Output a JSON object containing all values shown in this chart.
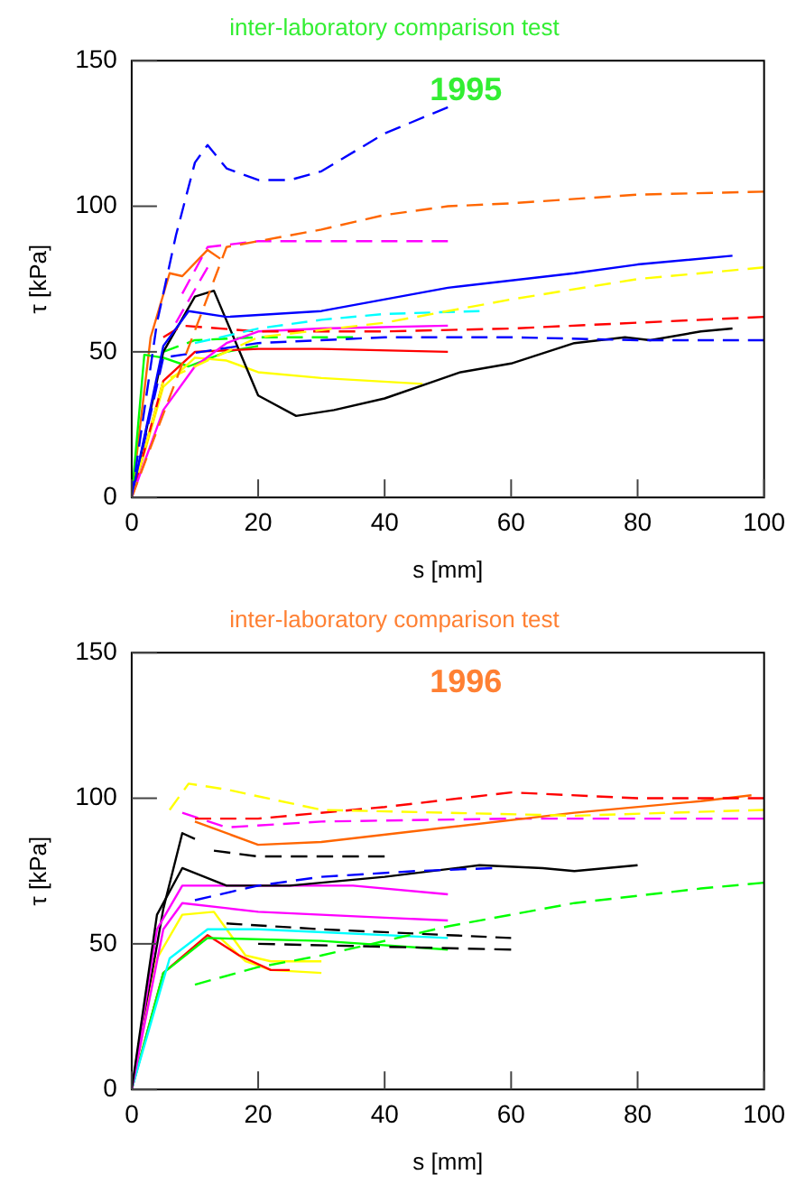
{
  "chart_data": [
    {
      "type": "line",
      "title": "inter-laboratory comparison test",
      "annotations": [
        "1995"
      ],
      "xlabel": "s [mm]",
      "ylabel": "τ [kPa]",
      "xlim": [
        0,
        100
      ],
      "xticks": [
        0,
        20,
        40,
        60,
        80,
        100
      ],
      "ylim": [
        0,
        150
      ],
      "yticks": [
        0,
        50,
        100,
        150
      ],
      "grid": false,
      "legend": false,
      "marker": "none",
      "series": [
        {
          "color": "#0000ff",
          "line_style": "dashed",
          "x": [
            0,
            4,
            7,
            10,
            12,
            15,
            20,
            25,
            30,
            40,
            50
          ],
          "values": [
            0,
            60,
            90,
            115,
            121,
            113,
            109,
            109,
            112,
            125,
            134
          ]
        },
        {
          "color": "#ff6600",
          "line_style": "dashed",
          "x": [
            0,
            15,
            30,
            40,
            50,
            60,
            80,
            100
          ],
          "values": [
            0,
            86,
            92,
            97,
            100,
            101,
            104,
            105
          ]
        },
        {
          "color": "#ff00ff",
          "line_style": "dashed",
          "x": [
            8,
            12,
            20,
            30,
            50
          ],
          "values": [
            70,
            86,
            88,
            88,
            88
          ]
        },
        {
          "color": "#0000ff",
          "line_style": "solid",
          "x": [
            0,
            5,
            9,
            15,
            30,
            50,
            70,
            80,
            95
          ],
          "values": [
            0,
            52,
            64,
            62,
            64,
            72,
            77,
            80,
            83
          ]
        },
        {
          "color": "#ffff00",
          "line_style": "dashed",
          "x": [
            0,
            5,
            20,
            40,
            60,
            80,
            100
          ],
          "values": [
            0,
            40,
            55,
            60,
            68,
            75,
            79
          ]
        },
        {
          "color": "#00ffff",
          "line_style": "dashed",
          "x": [
            10,
            20,
            30,
            40,
            55
          ],
          "values": [
            53,
            58,
            61,
            63,
            64
          ]
        },
        {
          "color": "#ff0000",
          "line_style": "dashed",
          "x": [
            5,
            8,
            20,
            40,
            60,
            80,
            100
          ],
          "values": [
            55,
            59,
            57,
            57,
            58,
            60,
            62
          ]
        },
        {
          "color": "#0000ff",
          "line_style": "dashed",
          "x": [
            0,
            5,
            20,
            40,
            60,
            80,
            100
          ],
          "values": [
            0,
            48,
            53,
            55,
            55,
            54,
            54
          ]
        },
        {
          "color": "#ff00ff",
          "line_style": "solid",
          "x": [
            0,
            5,
            10,
            15,
            20,
            30,
            50
          ],
          "values": [
            0,
            30,
            45,
            53,
            57,
            58,
            59
          ]
        },
        {
          "color": "#ff0000",
          "line_style": "solid",
          "x": [
            0,
            5,
            10,
            20,
            30,
            50
          ],
          "values": [
            0,
            40,
            50,
            51,
            51,
            50
          ]
        },
        {
          "color": "#000000",
          "line_style": "solid",
          "x": [
            0,
            5,
            10,
            13,
            20,
            26,
            32,
            40,
            48,
            52,
            60,
            70,
            78,
            82,
            90,
            95
          ],
          "values": [
            0,
            50,
            69,
            71,
            35,
            28,
            30,
            34,
            40,
            43,
            46,
            53,
            55,
            54,
            57,
            58
          ]
        },
        {
          "color": "#ffff00",
          "line_style": "solid",
          "x": [
            0,
            5,
            10,
            15,
            20,
            30,
            46
          ],
          "values": [
            0,
            38,
            48,
            47,
            43,
            41,
            39
          ]
        },
        {
          "color": "#00ff00",
          "line_style": "solid",
          "x": [
            0,
            2,
            5,
            9,
            15,
            20
          ],
          "values": [
            0,
            49,
            48,
            45,
            50,
            52
          ]
        },
        {
          "color": "#00ff00",
          "line_style": "dashed",
          "x": [
            5,
            10,
            20,
            35
          ],
          "values": [
            50,
            54,
            55,
            55
          ]
        },
        {
          "color": "#ff6600",
          "line_style": "solid",
          "x": [
            0,
            3,
            6,
            8,
            12,
            14
          ],
          "values": [
            0,
            55,
            77,
            76,
            85,
            82
          ]
        },
        {
          "color": "#ff00ff",
          "line_style": "dashed",
          "x": [
            7,
            12
          ],
          "values": [
            60,
            79
          ]
        }
      ]
    },
    {
      "type": "line",
      "title": "inter-laboratory comparison test",
      "annotations": [
        "1996"
      ],
      "xlabel": "s [mm]",
      "ylabel": "τ [kPa]",
      "xlim": [
        0,
        100
      ],
      "xticks": [
        0,
        20,
        40,
        60,
        80,
        100
      ],
      "ylim": [
        0,
        150
      ],
      "yticks": [
        0,
        50,
        100,
        150
      ],
      "grid": false,
      "legend": false,
      "marker": "none",
      "series": [
        {
          "color": "#ffff00",
          "line_style": "dashed",
          "x": [
            6,
            9,
            15,
            30,
            50,
            70,
            100
          ],
          "values": [
            96,
            105,
            103,
            96,
            95,
            94,
            96
          ]
        },
        {
          "color": "#ff0000",
          "line_style": "dashed",
          "x": [
            10,
            20,
            40,
            60,
            80,
            100
          ],
          "values": [
            93,
            93,
            97,
            102,
            100,
            100
          ]
        },
        {
          "color": "#ff6600",
          "line_style": "solid",
          "x": [
            10,
            20,
            30,
            50,
            70,
            90,
            98
          ],
          "values": [
            92,
            84,
            85,
            90,
            95,
            99,
            101
          ]
        },
        {
          "color": "#ff00ff",
          "line_style": "dashed",
          "x": [
            8,
            15,
            30,
            60,
            100
          ],
          "values": [
            95,
            90,
            92,
            93,
            93
          ]
        },
        {
          "color": "#000000",
          "line_style": "dashed",
          "x": [
            13,
            20,
            40
          ],
          "values": [
            82,
            80,
            80
          ]
        },
        {
          "color": "#0000ff",
          "line_style": "dashed",
          "x": [
            10,
            20,
            30,
            45,
            57
          ],
          "values": [
            65,
            70,
            73,
            75,
            76
          ]
        },
        {
          "color": "#000000",
          "line_style": "solid",
          "x": [
            0,
            4,
            8,
            15,
            25,
            40,
            55,
            65,
            70,
            80
          ],
          "values": [
            0,
            60,
            76,
            70,
            70,
            73,
            77,
            76,
            75,
            77
          ]
        },
        {
          "color": "#ff00ff",
          "line_style": "solid",
          "x": [
            0,
            4,
            8,
            20,
            35,
            50
          ],
          "values": [
            0,
            55,
            70,
            70,
            70,
            67
          ]
        },
        {
          "color": "#ff00ff",
          "line_style": "solid",
          "x": [
            0,
            5,
            8,
            20,
            40,
            50
          ],
          "values": [
            0,
            55,
            64,
            61,
            59,
            58
          ]
        },
        {
          "color": "#00ff00",
          "line_style": "dashed",
          "x": [
            10,
            20,
            30,
            50,
            70,
            90,
            100
          ],
          "values": [
            36,
            42,
            46,
            56,
            64,
            69,
            71
          ]
        },
        {
          "color": "#000000",
          "line_style": "dashed",
          "x": [
            15,
            30,
            50,
            60
          ],
          "values": [
            57,
            55,
            53,
            52
          ]
        },
        {
          "color": "#000000",
          "line_style": "dashed",
          "x": [
            20,
            40,
            60
          ],
          "values": [
            50,
            49,
            48
          ]
        },
        {
          "color": "#00ffff",
          "line_style": "solid",
          "x": [
            0,
            6,
            12,
            20,
            50
          ],
          "values": [
            0,
            45,
            55,
            55,
            52
          ]
        },
        {
          "color": "#00ff00",
          "line_style": "solid",
          "x": [
            0,
            5,
            12,
            30,
            50
          ],
          "values": [
            0,
            40,
            52,
            51,
            48
          ]
        },
        {
          "color": "#ffff00",
          "line_style": "solid",
          "x": [
            0,
            4,
            8,
            13,
            18,
            22,
            30
          ],
          "values": [
            0,
            45,
            60,
            61,
            46,
            44,
            44
          ]
        },
        {
          "color": "#ff0000",
          "line_style": "solid",
          "x": [
            0,
            5,
            12,
            17,
            22,
            25
          ],
          "values": [
            0,
            40,
            53,
            46,
            41,
            41
          ]
        },
        {
          "color": "#000000",
          "line_style": "solid",
          "x": [
            0,
            5,
            8,
            10
          ],
          "values": [
            0,
            62,
            88,
            86
          ]
        },
        {
          "color": "#ffff00",
          "line_style": "solid",
          "x": [
            14,
            18,
            22,
            30
          ],
          "values": [
            52,
            44,
            41,
            40
          ]
        }
      ]
    }
  ]
}
